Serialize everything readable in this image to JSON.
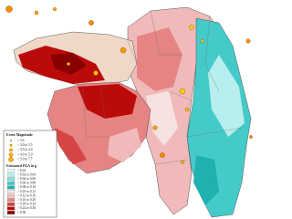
{
  "legend": {
    "magnitude_title": "Event Magnitude",
    "magnitude_items": [
      "< 3.0",
      "> 3.0 to 3.5",
      "> 3.5 to 4.0",
      "> 4.0 to 5.0",
      "> 5.0 to 7.7"
    ],
    "pga_title": "Estimated PGA in g",
    "pga_items": [
      {
        "label": "< 0.02",
        "color": "#e4f8f8"
      },
      {
        "label": "> 0.02 to 0.04",
        "color": "#b8eeee"
      },
      {
        "label": "> 0.04 to 0.06",
        "color": "#84e0e0"
      },
      {
        "label": "> 0.06 to 0.08",
        "color": "#45caca"
      },
      {
        "label": "> 0.08 to 0.10",
        "color": "#1fb0b0"
      },
      {
        "label": "> 0.10 to 0.12",
        "color": "#f7e2e2"
      },
      {
        "label": "> 0.12 to 0.16",
        "color": "#f0baba"
      },
      {
        "label": "> 0.16 to 0.20",
        "color": "#e68484"
      },
      {
        "label": "> 0.20 to 0.24",
        "color": "#d64444"
      },
      {
        "label": "> 0.24 to 0.30",
        "color": "#bb0a0a"
      },
      {
        "label": "> 0.30",
        "color": "#8a0000"
      }
    ]
  }
}
